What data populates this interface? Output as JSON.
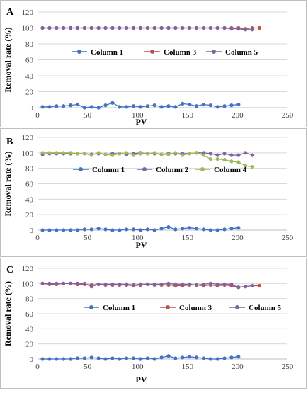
{
  "figure": {
    "panels": [
      {
        "label": "A",
        "xlabel": "PV",
        "ylabel": "Removal rate  (%)",
        "legend": [
          "Column 1",
          "Column 3",
          "Column 5"
        ]
      },
      {
        "label": "B",
        "xlabel": "PV",
        "ylabel": "Removal rate  (%)",
        "legend": [
          "Column 1",
          "Column 2",
          "Column 4"
        ]
      },
      {
        "label": "C",
        "xlabel": "PV",
        "ylabel": "Removal rate  (%)",
        "legend": [
          "Column 1",
          "Column 3",
          "Column 5"
        ]
      }
    ]
  },
  "chart_data": [
    {
      "type": "line",
      "title": "A",
      "xlabel": "PV",
      "ylabel": "Removal rate  (%)",
      "xlim": [
        0,
        250
      ],
      "ylim": [
        0,
        120
      ],
      "xticks": [
        0,
        50,
        100,
        150,
        200,
        250
      ],
      "yticks": [
        0,
        20,
        40,
        60,
        80,
        100,
        120
      ],
      "legend_position": "middle",
      "series": [
        {
          "name": "Column 1",
          "color": "#4472c4",
          "x": [
            5,
            12,
            19,
            26,
            33,
            40,
            47,
            54,
            61,
            68,
            75,
            82,
            89,
            96,
            103,
            110,
            117,
            124,
            131,
            138,
            145,
            152,
            159,
            166,
            173,
            180,
            187,
            194,
            201
          ],
          "y": [
            1,
            1,
            2,
            2,
            3,
            4,
            0,
            1,
            0,
            3,
            6,
            1,
            1,
            2,
            1,
            2,
            3,
            1,
            2,
            1,
            5,
            4,
            2,
            4,
            3,
            1,
            2,
            3,
            4
          ]
        },
        {
          "name": "Column 3",
          "color": "#c0504d",
          "x": [
            5,
            12,
            19,
            26,
            33,
            40,
            47,
            54,
            61,
            68,
            75,
            82,
            89,
            96,
            103,
            110,
            117,
            124,
            131,
            138,
            145,
            152,
            159,
            166,
            173,
            180,
            187,
            194,
            201,
            208,
            215,
            222
          ],
          "y": [
            100,
            100,
            100,
            100,
            100,
            100,
            100,
            100,
            100,
            100,
            100,
            100,
            100,
            100,
            100,
            100,
            100,
            100,
            100,
            100,
            100,
            100,
            100,
            100,
            100,
            100,
            100,
            100,
            100,
            99,
            100,
            100
          ]
        },
        {
          "name": "Column 5",
          "color": "#8064a2",
          "x": [
            5,
            12,
            19,
            26,
            33,
            40,
            47,
            54,
            61,
            68,
            75,
            82,
            89,
            96,
            103,
            110,
            117,
            124,
            131,
            138,
            145,
            152,
            159,
            166,
            173,
            180,
            187,
            194,
            201,
            208,
            215
          ],
          "y": [
            100,
            100,
            100,
            100,
            100,
            100,
            100,
            100,
            100,
            100,
            100,
            100,
            100,
            100,
            100,
            100,
            100,
            100,
            100,
            100,
            100,
            100,
            100,
            100,
            100,
            100,
            100,
            99,
            99,
            98,
            98
          ]
        }
      ]
    },
    {
      "type": "line",
      "title": "B",
      "xlabel": "PV",
      "ylabel": "Removal rate  (%)",
      "xlim": [
        0,
        250
      ],
      "ylim": [
        0,
        120
      ],
      "xticks": [
        0,
        50,
        100,
        150,
        200,
        250
      ],
      "yticks": [
        0,
        20,
        40,
        60,
        80,
        100,
        120
      ],
      "legend_position": "middle",
      "series": [
        {
          "name": "Column 1",
          "color": "#4472c4",
          "x": [
            5,
            12,
            19,
            26,
            33,
            40,
            47,
            54,
            61,
            68,
            75,
            82,
            89,
            96,
            103,
            110,
            117,
            124,
            131,
            138,
            145,
            152,
            159,
            166,
            173,
            180,
            187,
            194,
            201
          ],
          "y": [
            0,
            0,
            0,
            0,
            0,
            0,
            1,
            1,
            2,
            1,
            0,
            0,
            1,
            1,
            0,
            1,
            0,
            2,
            4,
            1,
            2,
            3,
            2,
            1,
            0,
            0,
            1,
            2,
            3
          ]
        },
        {
          "name": "Column 2",
          "color": "#8064a2",
          "x": [
            5,
            12,
            19,
            26,
            33,
            40,
            47,
            54,
            61,
            68,
            75,
            82,
            89,
            96,
            103,
            110,
            117,
            124,
            131,
            138,
            145,
            152,
            159,
            166,
            173,
            180,
            187,
            194,
            201,
            208,
            215
          ],
          "y": [
            98,
            99,
            99,
            99,
            99,
            99,
            99,
            98,
            99,
            98,
            99,
            99,
            98,
            99,
            100,
            99,
            99,
            98,
            99,
            99,
            99,
            99,
            100,
            100,
            99,
            97,
            99,
            97,
            97,
            100,
            97
          ]
        },
        {
          "name": "Column 4",
          "color": "#9bbb59",
          "x": [
            5,
            12,
            19,
            26,
            33,
            40,
            47,
            54,
            61,
            68,
            75,
            82,
            89,
            96,
            103,
            110,
            117,
            124,
            131,
            138,
            145,
            152,
            159,
            166,
            173,
            180,
            187,
            194,
            201,
            208,
            215
          ],
          "y": [
            100,
            100,
            100,
            100,
            100,
            99,
            99,
            97,
            100,
            98,
            97,
            99,
            100,
            97,
            99,
            99,
            100,
            98,
            98,
            100,
            97,
            99,
            100,
            97,
            92,
            92,
            91,
            89,
            88,
            83,
            82
          ]
        }
      ]
    },
    {
      "type": "line",
      "title": "C",
      "xlabel": "PV",
      "ylabel": "Removal rate  (%)",
      "xlim": [
        0,
        250
      ],
      "ylim": [
        0,
        120
      ],
      "xticks": [
        0,
        50,
        100,
        150,
        200,
        250
      ],
      "yticks": [
        0,
        20,
        40,
        60,
        80,
        100,
        120
      ],
      "legend_position": "middle",
      "series": [
        {
          "name": "Column 1",
          "color": "#4472c4",
          "x": [
            5,
            12,
            19,
            26,
            33,
            40,
            47,
            54,
            61,
            68,
            75,
            82,
            89,
            96,
            103,
            110,
            117,
            124,
            131,
            138,
            145,
            152,
            159,
            166,
            173,
            180,
            187,
            194,
            201
          ],
          "y": [
            0,
            0,
            0,
            0,
            0,
            1,
            1,
            2,
            1,
            0,
            1,
            0,
            1,
            1,
            0,
            1,
            0,
            2,
            4,
            1,
            2,
            3,
            2,
            1,
            0,
            0,
            1,
            2,
            3
          ]
        },
        {
          "name": "Column 3",
          "color": "#c0504d",
          "x": [
            5,
            12,
            19,
            26,
            33,
            40,
            47,
            54,
            61,
            68,
            75,
            82,
            89,
            96,
            103,
            110,
            117,
            124,
            131,
            138,
            145,
            152,
            159,
            166,
            173,
            180,
            187,
            194,
            201,
            208,
            215,
            222
          ],
          "y": [
            100,
            99,
            99,
            100,
            100,
            99,
            99,
            98,
            99,
            98,
            98,
            98,
            98,
            97,
            98,
            99,
            98,
            98,
            98,
            97,
            97,
            98,
            98,
            97,
            98,
            97,
            98,
            97,
            95,
            96,
            97,
            97
          ]
        },
        {
          "name": "Column 5",
          "color": "#8064a2",
          "x": [
            5,
            12,
            19,
            26,
            33,
            40,
            47,
            54,
            61,
            68,
            75,
            82,
            89,
            96,
            103,
            110,
            117,
            124,
            131,
            138,
            145,
            152,
            159,
            166,
            173,
            180,
            187,
            194,
            201,
            208,
            215
          ],
          "y": [
            100,
            100,
            100,
            100,
            100,
            100,
            100,
            96,
            99,
            99,
            99,
            99,
            99,
            98,
            99,
            99,
            99,
            99,
            100,
            99,
            99,
            99,
            98,
            99,
            100,
            99,
            99,
            99,
            95,
            96,
            97
          ]
        }
      ]
    }
  ]
}
